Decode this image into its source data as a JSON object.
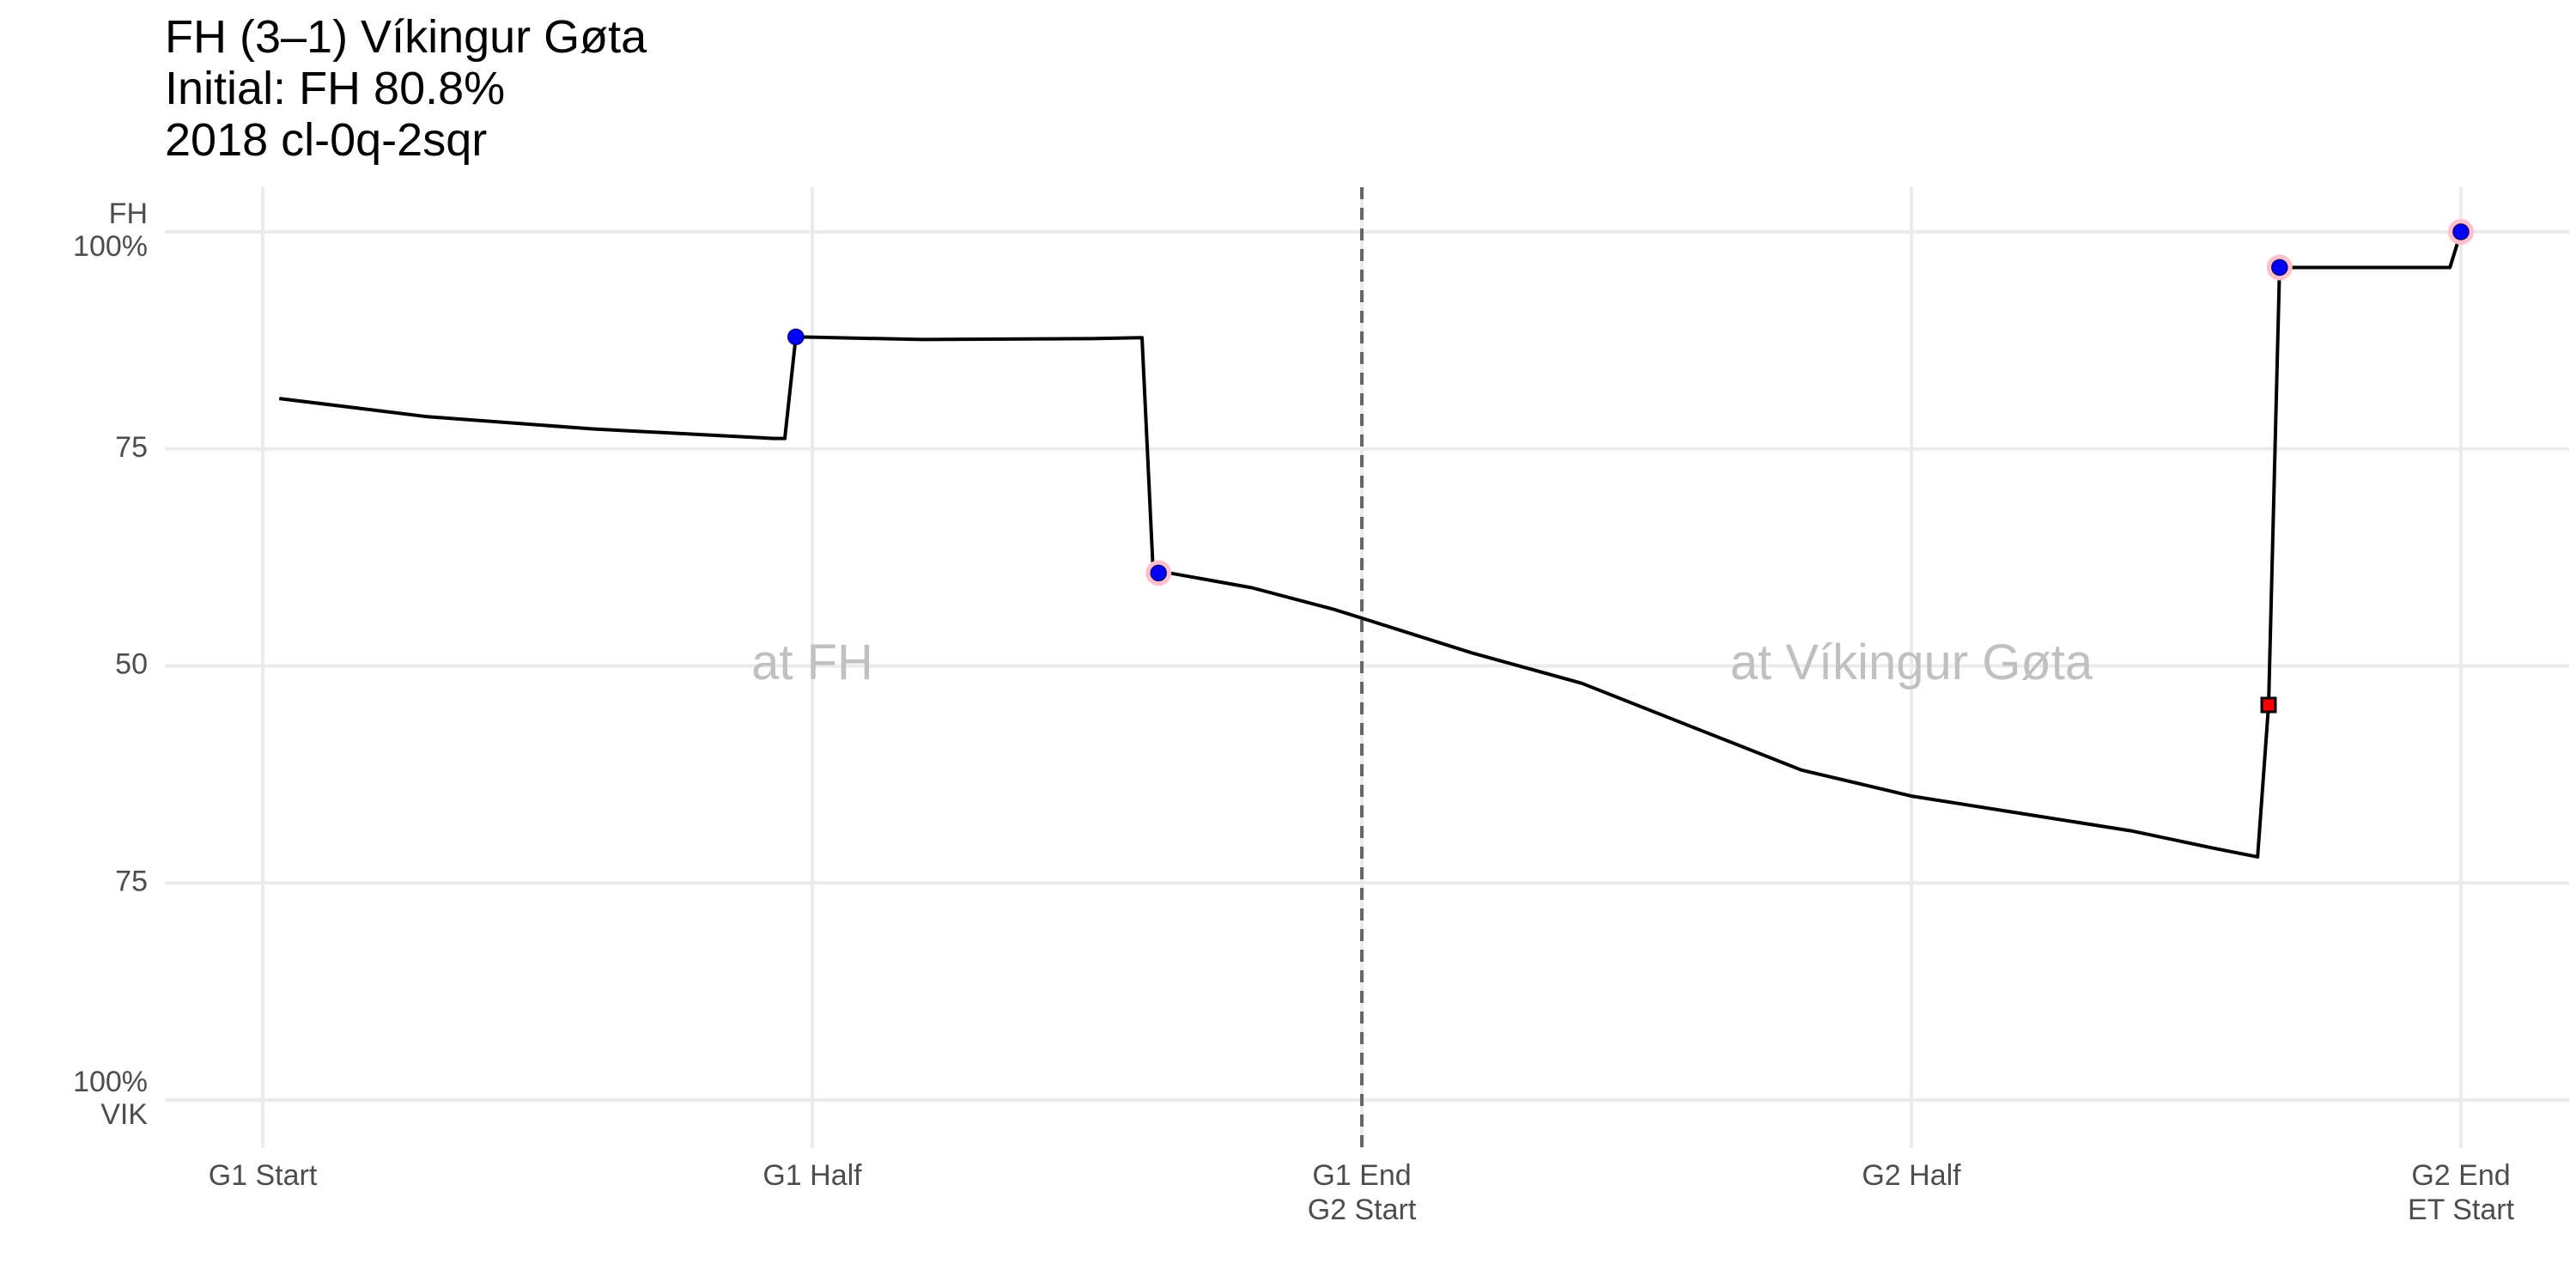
{
  "chart_data": {
    "type": "line",
    "title": "FH (3–1) Víkingur Gøta",
    "subtitle": "Initial: FH 80.8%",
    "caption": "2018 cl-0q-2sqr",
    "xlabel": "",
    "ylabel": "",
    "x_ticks": [
      {
        "value": 0,
        "lines": [
          "G1 Start"
        ]
      },
      {
        "value": 1,
        "lines": [
          "G1 Half"
        ]
      },
      {
        "value": 2,
        "lines": [
          "G1 End",
          "G2 Start"
        ]
      },
      {
        "value": 3,
        "lines": [
          "G2 Half"
        ]
      },
      {
        "value": 4,
        "lines": [
          "G2 End",
          "ET Start"
        ]
      }
    ],
    "y_ticks": [
      {
        "value": 100,
        "lines": [
          "FH",
          "100%"
        ]
      },
      {
        "value": 75,
        "lines": [
          "75"
        ]
      },
      {
        "value": 50,
        "lines": [
          "50"
        ]
      },
      {
        "value": 25,
        "lines": [
          "75"
        ]
      },
      {
        "value": 0,
        "lines": [
          "100%",
          "VIK"
        ]
      }
    ],
    "xlim": [
      -0.05,
      4.2
    ],
    "ylim": [
      -5,
      105
    ],
    "grid": true,
    "divider_x": 2,
    "venue_labels": [
      {
        "text": "at FH",
        "x": 1,
        "y": 50
      },
      {
        "text": "at Víkingur Gøta",
        "x": 3,
        "y": 50
      }
    ],
    "series": [
      {
        "color": "#000000",
        "points": [
          [
            0.03,
            80.8
          ],
          [
            0.3,
            78.7
          ],
          [
            0.6,
            77.3
          ],
          [
            0.93,
            76.2
          ],
          [
            0.95,
            76.2
          ],
          [
            0.97,
            87.9
          ],
          [
            1.2,
            87.6
          ],
          [
            1.5,
            87.7
          ],
          [
            1.6,
            87.8
          ],
          [
            1.62,
            61.2
          ],
          [
            1.65,
            60.7
          ],
          [
            1.8,
            59.0
          ],
          [
            1.95,
            56.5
          ],
          [
            2.0,
            55.5
          ],
          [
            2.2,
            51.5
          ],
          [
            2.4,
            48.0
          ],
          [
            2.6,
            43.0
          ],
          [
            2.8,
            38.0
          ],
          [
            3.0,
            35.0
          ],
          [
            3.2,
            33.0
          ],
          [
            3.4,
            31.0
          ],
          [
            3.55,
            29.0
          ],
          [
            3.63,
            28.0
          ],
          [
            3.65,
            45.5
          ],
          [
            3.67,
            95.9
          ],
          [
            3.76,
            95.9
          ],
          [
            3.98,
            95.9
          ],
          [
            4.0,
            100
          ]
        ]
      }
    ],
    "markers": [
      {
        "x": 0.97,
        "y": 87.9,
        "shape": "circle",
        "fill": "#0000ff",
        "halo": false
      },
      {
        "x": 1.63,
        "y": 60.7,
        "shape": "circle",
        "fill": "#0000ff",
        "halo": true
      },
      {
        "x": 3.67,
        "y": 95.9,
        "shape": "circle",
        "fill": "#0000ff",
        "halo": true
      },
      {
        "x": 4.0,
        "y": 100,
        "shape": "circle",
        "fill": "#0000ff",
        "halo": true
      },
      {
        "x": 3.65,
        "y": 45.5,
        "shape": "square",
        "fill": "#ff0000",
        "halo": false
      }
    ],
    "colors": {
      "line": "#000000",
      "grid": "#ebebeb",
      "divider": "#666666",
      "goal_home": "#0000ff",
      "goal_halo": "#ffc0cb",
      "card": "#ff0000",
      "venue_text": "#c0c0c0",
      "tick_text": "#4d4d4d"
    }
  }
}
